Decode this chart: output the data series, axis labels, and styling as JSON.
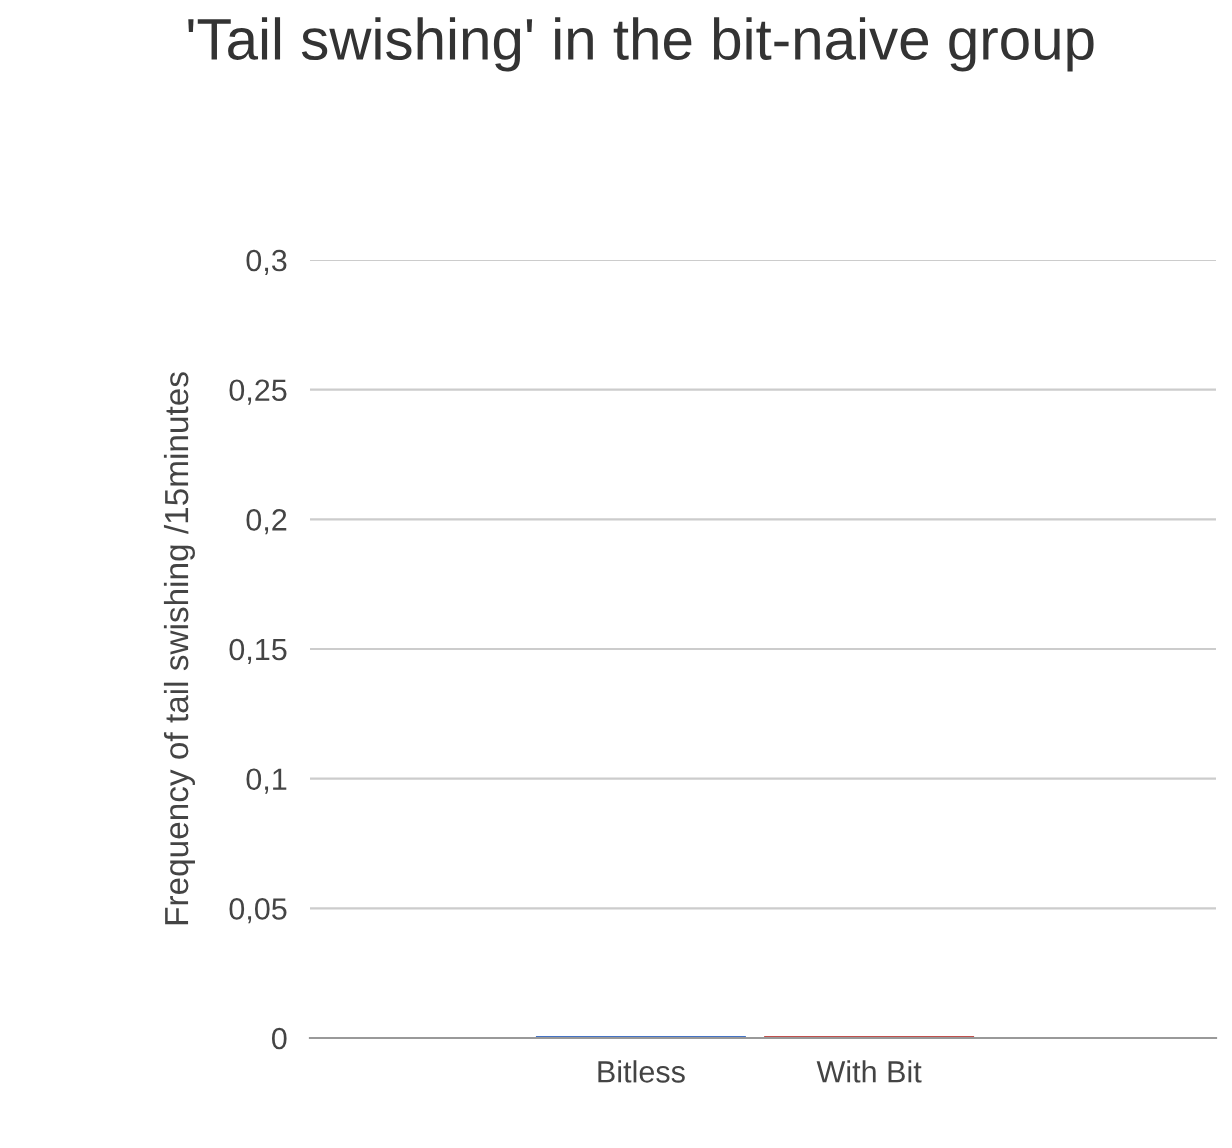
{
  "chart_data": {
    "type": "bar",
    "title": "'Tail swishing' in the bit-naive group",
    "ylabel": "Frequency of tail swishing /15minutes",
    "categories": [
      "Bitless",
      "With Bit"
    ],
    "values": [
      0,
      0
    ],
    "colors": [
      "#4472c4",
      "#c0504d"
    ],
    "ylim": [
      0,
      0.3
    ],
    "yticks": [
      {
        "value": 0,
        "label": "0"
      },
      {
        "value": 0.05,
        "label": "0,05"
      },
      {
        "value": 0.1,
        "label": "0,1"
      },
      {
        "value": 0.15,
        "label": "0,15"
      },
      {
        "value": 0.2,
        "label": "0,2"
      },
      {
        "value": 0.25,
        "label": "0,25"
      },
      {
        "value": 0.3,
        "label": "0,3"
      }
    ],
    "grid": "y",
    "legend": false
  }
}
